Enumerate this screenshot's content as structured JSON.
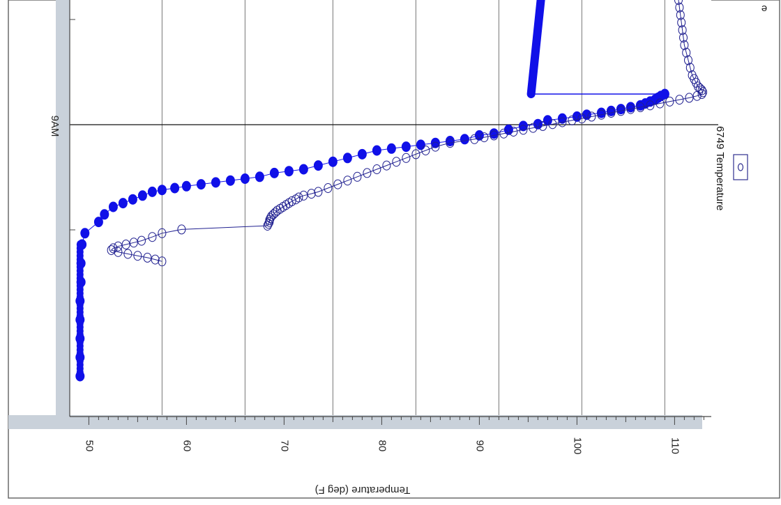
{
  "chart_data": {
    "type": "scatter",
    "orientation": "rotated-180",
    "title": "",
    "ylabel": "Temperature (deg F)",
    "ylim": [
      49,
      114
    ],
    "yticks": [
      50,
      60,
      70,
      80,
      90,
      100,
      110
    ],
    "x_event_label": "9AM",
    "grid": true,
    "legend_position": "upper-left (rotated view)",
    "series": [
      {
        "name": "",
        "marker": "filled-circle",
        "color": "#1010e8",
        "points": [
          [
            0.0,
            49.1
          ],
          [
            0.05,
            49.1
          ],
          [
            0.1,
            49.1
          ],
          [
            0.15,
            49.1
          ],
          [
            0.2,
            49.1
          ],
          [
            0.25,
            49.2
          ],
          [
            0.3,
            49.2
          ],
          [
            0.35,
            49.3
          ],
          [
            0.38,
            49.6
          ],
          [
            0.41,
            51.0
          ],
          [
            0.43,
            51.6
          ],
          [
            0.45,
            52.5
          ],
          [
            0.46,
            53.5
          ],
          [
            0.47,
            54.5
          ],
          [
            0.48,
            55.5
          ],
          [
            0.49,
            56.5
          ],
          [
            0.495,
            57.5
          ],
          [
            0.5,
            58.8
          ],
          [
            0.505,
            60.0
          ],
          [
            0.51,
            61.5
          ],
          [
            0.515,
            63.0
          ],
          [
            0.52,
            64.5
          ],
          [
            0.525,
            66.0
          ],
          [
            0.53,
            67.5
          ],
          [
            0.54,
            69.0
          ],
          [
            0.545,
            70.5
          ],
          [
            0.55,
            72.0
          ],
          [
            0.56,
            73.5
          ],
          [
            0.57,
            75.0
          ],
          [
            0.58,
            76.5
          ],
          [
            0.59,
            78.0
          ],
          [
            0.6,
            79.5
          ],
          [
            0.605,
            81.0
          ],
          [
            0.61,
            82.5
          ],
          [
            0.615,
            84.0
          ],
          [
            0.62,
            85.5
          ],
          [
            0.625,
            87.0
          ],
          [
            0.63,
            88.5
          ],
          [
            0.64,
            90.0
          ],
          [
            0.645,
            91.5
          ],
          [
            0.655,
            93.0
          ],
          [
            0.665,
            94.5
          ],
          [
            0.67,
            96.0
          ],
          [
            0.68,
            97.0
          ],
          [
            0.685,
            98.5
          ],
          [
            0.69,
            100.0
          ],
          [
            0.695,
            101.0
          ],
          [
            0.7,
            102.5
          ],
          [
            0.705,
            103.5
          ],
          [
            0.71,
            104.5
          ],
          [
            0.715,
            105.5
          ],
          [
            0.72,
            106.5
          ],
          [
            0.725,
            107.0
          ],
          [
            0.73,
            107.5
          ],
          [
            0.735,
            108.0
          ],
          [
            0.74,
            108.3
          ],
          [
            0.745,
            108.6
          ],
          [
            0.75,
            109.0
          ]
        ]
      },
      {
        "name": "6749 Temperature",
        "marker": "open-circle",
        "color": "#202090",
        "points": [
          [
            0.305,
            57.5
          ],
          [
            0.31,
            56.8
          ],
          [
            0.315,
            56.0
          ],
          [
            0.32,
            55.0
          ],
          [
            0.325,
            54.0
          ],
          [
            0.33,
            53.0
          ],
          [
            0.335,
            52.3
          ],
          [
            0.34,
            52.5
          ],
          [
            0.345,
            53.0
          ],
          [
            0.35,
            53.8
          ],
          [
            0.355,
            54.6
          ],
          [
            0.36,
            55.4
          ],
          [
            0.37,
            56.5
          ],
          [
            0.38,
            57.5
          ],
          [
            0.39,
            59.5
          ],
          [
            0.4,
            68.3
          ],
          [
            0.405,
            68.4
          ],
          [
            0.41,
            68.5
          ],
          [
            0.415,
            68.5
          ],
          [
            0.42,
            68.6
          ],
          [
            0.425,
            68.7
          ],
          [
            0.43,
            68.9
          ],
          [
            0.435,
            69.1
          ],
          [
            0.44,
            69.3
          ],
          [
            0.445,
            69.6
          ],
          [
            0.45,
            69.9
          ],
          [
            0.455,
            70.2
          ],
          [
            0.46,
            70.5
          ],
          [
            0.465,
            70.8
          ],
          [
            0.47,
            71.2
          ],
          [
            0.475,
            71.5
          ],
          [
            0.48,
            72.0
          ],
          [
            0.485,
            72.8
          ],
          [
            0.49,
            73.5
          ],
          [
            0.5,
            74.5
          ],
          [
            0.51,
            75.5
          ],
          [
            0.52,
            76.5
          ],
          [
            0.53,
            77.5
          ],
          [
            0.54,
            78.5
          ],
          [
            0.55,
            79.5
          ],
          [
            0.56,
            80.5
          ],
          [
            0.57,
            81.5
          ],
          [
            0.58,
            82.5
          ],
          [
            0.59,
            83.5
          ],
          [
            0.6,
            84.5
          ],
          [
            0.61,
            85.5
          ],
          [
            0.62,
            87.0
          ],
          [
            0.63,
            89.5
          ],
          [
            0.635,
            90.5
          ],
          [
            0.64,
            91.5
          ],
          [
            0.645,
            92.5
          ],
          [
            0.65,
            93.5
          ],
          [
            0.655,
            94.5
          ],
          [
            0.66,
            95.5
          ],
          [
            0.665,
            96.5
          ],
          [
            0.67,
            97.5
          ],
          [
            0.675,
            98.5
          ],
          [
            0.68,
            99.5
          ],
          [
            0.685,
            100.5
          ],
          [
            0.69,
            101.5
          ],
          [
            0.695,
            102.5
          ],
          [
            0.7,
            103.5
          ],
          [
            0.705,
            104.5
          ],
          [
            0.71,
            105.5
          ],
          [
            0.715,
            106.5
          ],
          [
            0.72,
            107.5
          ],
          [
            0.725,
            108.5
          ],
          [
            0.73,
            109.5
          ],
          [
            0.735,
            110.5
          ],
          [
            0.74,
            111.5
          ],
          [
            0.745,
            112.3
          ],
          [
            0.75,
            112.8
          ],
          [
            0.755,
            112.9
          ],
          [
            0.76,
            112.8
          ],
          [
            0.765,
            112.6
          ],
          [
            0.77,
            112.4
          ],
          [
            0.78,
            112.2
          ],
          [
            0.79,
            112.0
          ],
          [
            0.8,
            111.8
          ],
          [
            0.82,
            111.6
          ],
          [
            0.84,
            111.4
          ],
          [
            0.86,
            111.2
          ],
          [
            0.88,
            111.0
          ],
          [
            0.9,
            110.9
          ],
          [
            0.92,
            110.8
          ],
          [
            0.94,
            110.7
          ],
          [
            0.96,
            110.6
          ],
          [
            0.98,
            110.5
          ],
          [
            1.0,
            110.4
          ]
        ]
      },
      {
        "name": "",
        "marker": "heavy-line",
        "color": "#1010e8",
        "points": [
          [
            0.75,
            95.3
          ],
          [
            0.8,
            95.5
          ],
          [
            0.85,
            95.7
          ],
          [
            0.9,
            95.9
          ],
          [
            0.95,
            96.1
          ],
          [
            1.0,
            96.3
          ]
        ]
      }
    ]
  }
}
